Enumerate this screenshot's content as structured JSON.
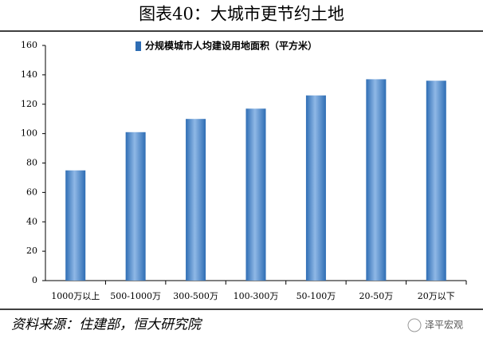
{
  "chart_data": {
    "type": "bar",
    "title": "图表40：大城市更节约土地",
    "legend": "分规模城市人均建设用地面积（平方米）",
    "categories": [
      "1000万以上",
      "500-1000万",
      "300-500万",
      "100-300万",
      "50-100万",
      "20-50万",
      "20万以下"
    ],
    "values": [
      75,
      101,
      110,
      117,
      126,
      137,
      136
    ],
    "color": "#2e6db4",
    "ylim": [
      0,
      160
    ],
    "yticks": [
      0,
      20,
      40,
      60,
      80,
      100,
      120,
      140,
      160
    ],
    "source": "资料来源：住建部，恒大研究院",
    "watermark": "泽平宏观"
  }
}
